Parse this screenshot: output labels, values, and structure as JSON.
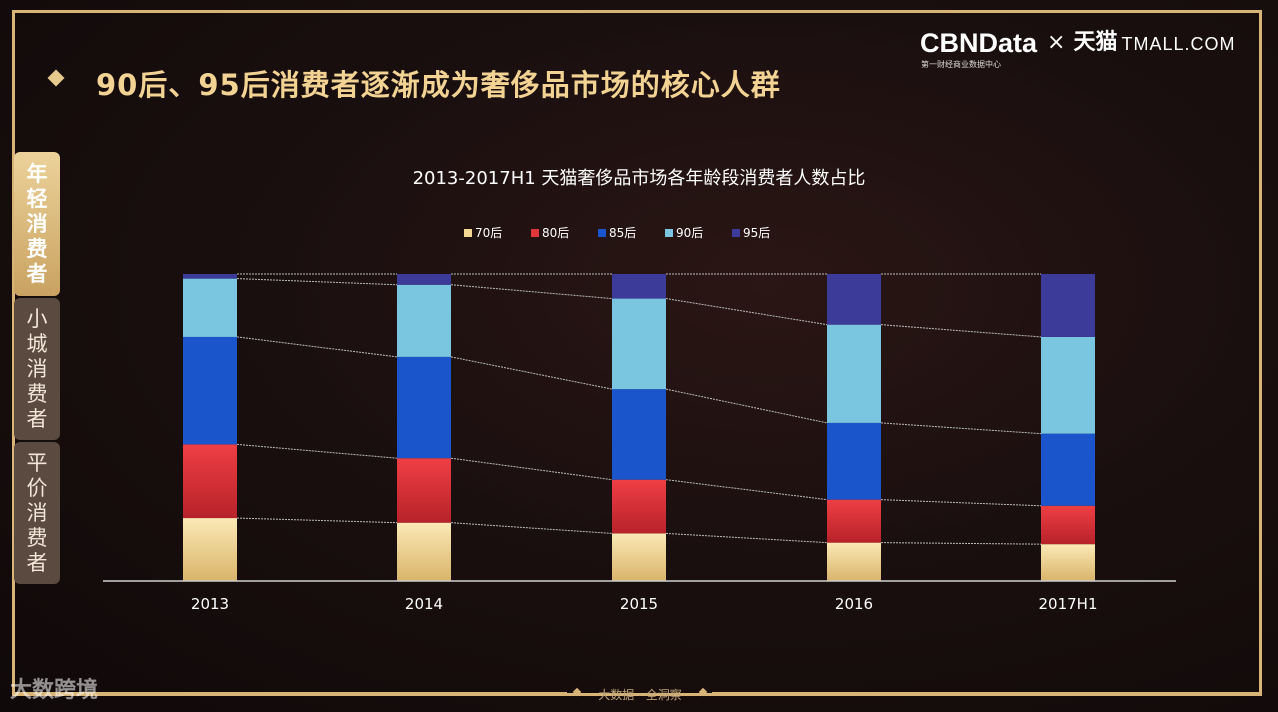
{
  "page_title": "90后、95后消费者逐渐成为奢侈品市场的核心人群",
  "logo": {
    "brand": "CBNData",
    "tagline": "第一财经商业数据中心",
    "separator": "×",
    "partner": "天猫",
    "partner_en": "TMALL.COM"
  },
  "side_tabs": [
    {
      "label": [
        "年",
        "轻",
        "消",
        "费",
        "者"
      ],
      "active": true
    },
    {
      "label": [
        "小",
        "城",
        "消",
        "费",
        "者"
      ],
      "active": false
    },
    {
      "label": [
        "平",
        "价",
        "消",
        "费",
        "者"
      ],
      "active": false
    }
  ],
  "footer": {
    "text": "大数据 · 全洞察"
  },
  "watermark": "大数跨境",
  "chart_data": {
    "type": "bar",
    "stacked": true,
    "normalized": true,
    "title": "2013-2017H1 天猫奢侈品市场各年龄段消费者人数占比",
    "categories": [
      "2013",
      "2014",
      "2015",
      "2016",
      "2017H1"
    ],
    "series": [
      {
        "name": "70后",
        "color": "#f3d994",
        "values": [
          20.5,
          19.0,
          15.5,
          12.5,
          12.0
        ]
      },
      {
        "name": "80后",
        "color": "#e2363d",
        "values": [
          24.0,
          21.0,
          17.5,
          14.0,
          12.5
        ]
      },
      {
        "name": "85后",
        "color": "#1a55cc",
        "values": [
          35.0,
          33.0,
          29.5,
          25.0,
          23.5
        ]
      },
      {
        "name": "90后",
        "color": "#7ac6e0",
        "values": [
          19.0,
          23.5,
          29.5,
          32.0,
          31.5
        ]
      },
      {
        "name": "95后",
        "color": "#3c3b9a",
        "values": [
          1.5,
          3.5,
          8.0,
          16.5,
          20.5
        ]
      }
    ],
    "ylim": [
      0,
      100
    ],
    "legend": "top-center",
    "grid": false,
    "connector_lines": true
  }
}
